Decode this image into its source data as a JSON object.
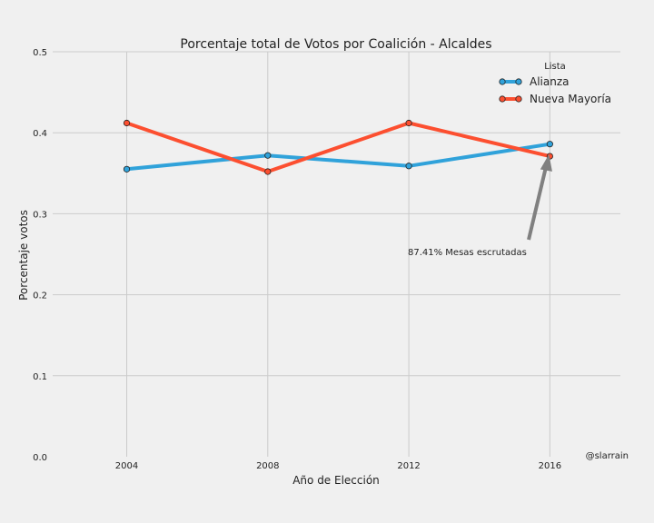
{
  "chart_data": {
    "type": "line",
    "title": "Porcentaje total de Votos por Coalición - Alcaldes",
    "xlabel": "Año de Elección",
    "ylabel": "Porcentaje votos",
    "x": [
      2004,
      2008,
      2012,
      2016
    ],
    "xlim": [
      2001.9,
      2018
    ],
    "ylim": [
      0.0,
      0.5
    ],
    "x_ticks": [
      "2004",
      "2008",
      "2012",
      "2016"
    ],
    "y_ticks": [
      "0.0",
      "0.1",
      "0.2",
      "0.3",
      "0.4",
      "0.5"
    ],
    "grid": true,
    "legend": {
      "title": "Lista",
      "placement": "top-right"
    },
    "series": [
      {
        "name": "Alianza",
        "color": "#30a2da",
        "values": [
          0.355,
          0.372,
          0.359,
          0.386
        ]
      },
      {
        "name": "Nueva Mayoría",
        "color": "#fc4f30",
        "values": [
          0.412,
          0.352,
          0.412,
          0.371
        ]
      }
    ],
    "annotation": {
      "text": "87.41% Mesas escrutadas",
      "x": 2016,
      "y": 0.371
    },
    "credit": "@slarrain"
  }
}
